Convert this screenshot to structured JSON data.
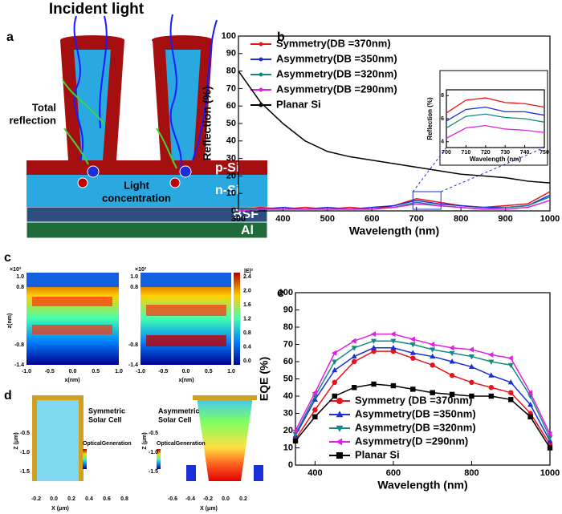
{
  "chart_data": [
    {
      "type": "line",
      "letter": "b",
      "xlabel": "Wavelength (nm)",
      "ylabel": "Reflection (%)",
      "xlim": [
        300,
        1000
      ],
      "ylim": [
        0,
        100
      ],
      "xticks": [
        300,
        400,
        500,
        600,
        700,
        800,
        900,
        1000
      ],
      "yticks": [
        0,
        10,
        20,
        30,
        40,
        50,
        60,
        70,
        80,
        90,
        100
      ],
      "x": [
        300,
        350,
        400,
        450,
        500,
        550,
        600,
        650,
        700,
        750,
        800,
        850,
        900,
        950,
        1000
      ],
      "series": [
        {
          "name": "Symmetry(DB =370nm)",
          "color": "#e8141b",
          "values": [
            1,
            2,
            1,
            2,
            1,
            2,
            1,
            3,
            7,
            5,
            3,
            2,
            3,
            4,
            11
          ]
        },
        {
          "name": "Asymmetry(DB =350nm)",
          "color": "#1a2fd6",
          "values": [
            1,
            1,
            2,
            1,
            2,
            1,
            2,
            3,
            6,
            4,
            3,
            2,
            2,
            3,
            9
          ]
        },
        {
          "name": "Asymmetry(DB =320nm)",
          "color": "#128a82",
          "values": [
            1,
            1,
            1,
            1,
            1,
            1,
            1,
            2,
            5,
            3,
            2,
            1,
            2,
            3,
            8
          ]
        },
        {
          "name": "Asymmetry(DB =290nm)",
          "color": "#e020e0",
          "values": [
            0,
            1,
            1,
            1,
            1,
            1,
            1,
            2,
            4,
            3,
            2,
            1,
            1,
            2,
            6
          ]
        },
        {
          "name": "Planar Si",
          "color": "#000000",
          "values": [
            80,
            62,
            50,
            40,
            34,
            31,
            29,
            27,
            25,
            23,
            21,
            20,
            19,
            17,
            16
          ]
        }
      ]
    },
    {
      "type": "line",
      "xlabel": "Wavelength (nm)",
      "ylabel": "Reflection (%)",
      "xlim": [
        700,
        750
      ],
      "ylim": [
        3.5,
        8.5
      ],
      "xticks": [
        700,
        710,
        720,
        730,
        740,
        750
      ],
      "yticks": [
        4,
        6,
        8
      ],
      "x": [
        700,
        710,
        720,
        730,
        740,
        750
      ],
      "series": [
        {
          "color": "#e8141b",
          "values": [
            6.5,
            7.6,
            7.8,
            7.4,
            7.3,
            7.0
          ]
        },
        {
          "color": "#1a2fd6",
          "values": [
            5.8,
            6.8,
            7.0,
            6.6,
            6.6,
            6.3
          ]
        },
        {
          "color": "#128a82",
          "values": [
            5.2,
            6.2,
            6.4,
            6.1,
            6.0,
            5.7
          ]
        },
        {
          "color": "#e020e0",
          "values": [
            4.3,
            5.2,
            5.4,
            5.1,
            5.0,
            4.8
          ]
        }
      ]
    },
    {
      "type": "line",
      "letter": "e",
      "xlabel": "Wavelength (nm)",
      "ylabel": "EQE (%)",
      "xlim": [
        350,
        1000
      ],
      "ylim": [
        0,
        100
      ],
      "xticks": [
        400,
        600,
        800,
        1000
      ],
      "yticks": [
        0,
        10,
        20,
        30,
        40,
        50,
        60,
        70,
        80,
        90,
        100
      ],
      "x": [
        350,
        400,
        450,
        500,
        550,
        600,
        650,
        700,
        750,
        800,
        850,
        900,
        950,
        1000
      ],
      "series": [
        {
          "name": "Symmetry (DB =370nm)",
          "color": "#e8141b",
          "marker": "circle",
          "values": [
            15,
            32,
            48,
            60,
            66,
            66,
            62,
            58,
            52,
            48,
            45,
            42,
            30,
            12
          ]
        },
        {
          "name": "Asymmetry(DB =350nm)",
          "color": "#1a2fd6",
          "marker": "triangle-up",
          "values": [
            17,
            38,
            55,
            63,
            68,
            68,
            65,
            63,
            60,
            57,
            52,
            48,
            35,
            14
          ]
        },
        {
          "name": "Asymmetry(DB =320nm)",
          "color": "#128a82",
          "marker": "triangle-down",
          "values": [
            18,
            40,
            60,
            68,
            72,
            72,
            70,
            67,
            65,
            63,
            60,
            58,
            40,
            16
          ]
        },
        {
          "name": "Asymmetry(D =290nm)",
          "color": "#e020e0",
          "marker": "triangle-left",
          "values": [
            20,
            42,
            65,
            72,
            76,
            76,
            73,
            70,
            68,
            67,
            64,
            62,
            42,
            18
          ]
        },
        {
          "name": "Planar Si",
          "color": "#000000",
          "marker": "square",
          "values": [
            14,
            28,
            40,
            45,
            47,
            46,
            44,
            42,
            41,
            40,
            40,
            38,
            28,
            10
          ]
        }
      ]
    }
  ],
  "panels": {
    "a": {
      "letter": "a",
      "title": "Incident light",
      "total_reflection": [
        "Total",
        "reflection"
      ],
      "light_concentration": [
        "Light",
        "concentration"
      ],
      "p_si": "p-Si",
      "n_si": "n-Si",
      "bsf": "BSF",
      "al": "Al"
    },
    "c": {
      "letter": "c",
      "exponent": "×10³",
      "ylabel": "z(nm)",
      "xlabel": "x(nm)",
      "yticks": [
        "1.0",
        "0.8",
        "-0.8",
        "-1.4"
      ],
      "xticks": [
        "-1.0",
        "-0.5",
        "0.0",
        "0.5",
        "1.0"
      ],
      "colorbar_title": "|E|²",
      "colorbar_ticks": [
        "2.4",
        "2.0",
        "1.6",
        "1.2",
        "0.8",
        "0.4",
        "0.0"
      ]
    },
    "d": {
      "letter": "d",
      "symmetric": [
        "Symmetric",
        "Solar Cell"
      ],
      "asymmetric": [
        "Asymmetric",
        "Solar Cell"
      ],
      "legend_title": "OpticalGeneration",
      "ylabel": "Z (μm)",
      "xlabel": "X (μm)",
      "yticks": [
        "-0.5",
        "-1.0",
        "-1.5"
      ],
      "xticks_left": [
        "-0.2",
        "0.0",
        "0.2",
        "0.4",
        "0.6",
        "0.8"
      ],
      "xticks_right": [
        "-0.6",
        "-0.4",
        "-0.2",
        "0.0",
        "0.2"
      ]
    }
  }
}
